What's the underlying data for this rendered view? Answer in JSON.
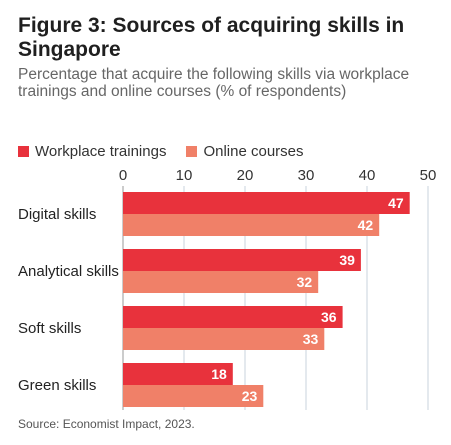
{
  "title": "Figure 3: Sources of acquiring skills in Singapore",
  "subtitle": "Percentage that acquire the following skills via workplace trainings and online courses (% of respondents)",
  "source": "Source: Economist Impact, 2023.",
  "chart_data": {
    "type": "bar",
    "orientation": "horizontal",
    "categories": [
      "Digital skills",
      "Analytical skills",
      "Soft skills",
      "Green skills"
    ],
    "series": [
      {
        "name": "Workplace trainings",
        "values": [
          47,
          39,
          36,
          18
        ],
        "color": "#e8323c"
      },
      {
        "name": "Online courses",
        "values": [
          42,
          32,
          33,
          23
        ],
        "color": "#f08068"
      }
    ],
    "xlim": [
      0,
      50
    ],
    "xticks": [
      0,
      10,
      20,
      30,
      40,
      50
    ],
    "axis_position": "top",
    "legend_position": "top-left",
    "grid": true,
    "data_labels": true
  }
}
